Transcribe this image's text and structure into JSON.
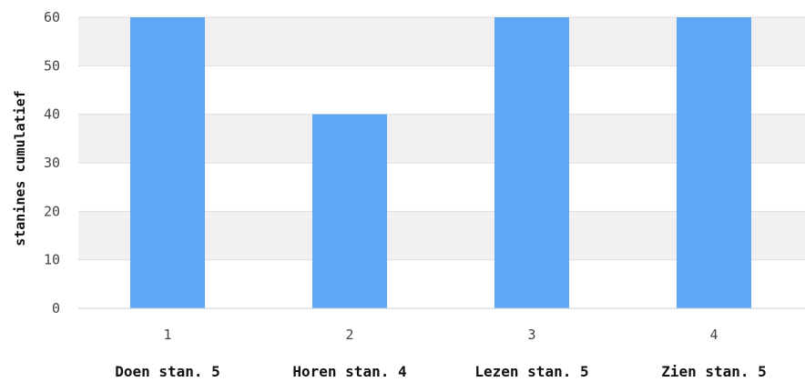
{
  "chart_data": {
    "type": "bar",
    "categories": [
      "1",
      "2",
      "3",
      "4"
    ],
    "category_names": [
      "Doen stan. 5",
      "Horen stan. 4",
      "Lezen stan. 5",
      "Zien stan. 5"
    ],
    "values": [
      60,
      40,
      60,
      60
    ],
    "title": "",
    "xlabel": "",
    "ylabel": "stanines cumulatief",
    "ylim": [
      0,
      60
    ],
    "yticks": [
      0,
      10,
      20,
      30,
      40,
      50,
      60
    ],
    "grid": true,
    "bar_color": "#5fa7f5",
    "band_color": "#f1f1f1",
    "grid_color": "#dddddd"
  }
}
